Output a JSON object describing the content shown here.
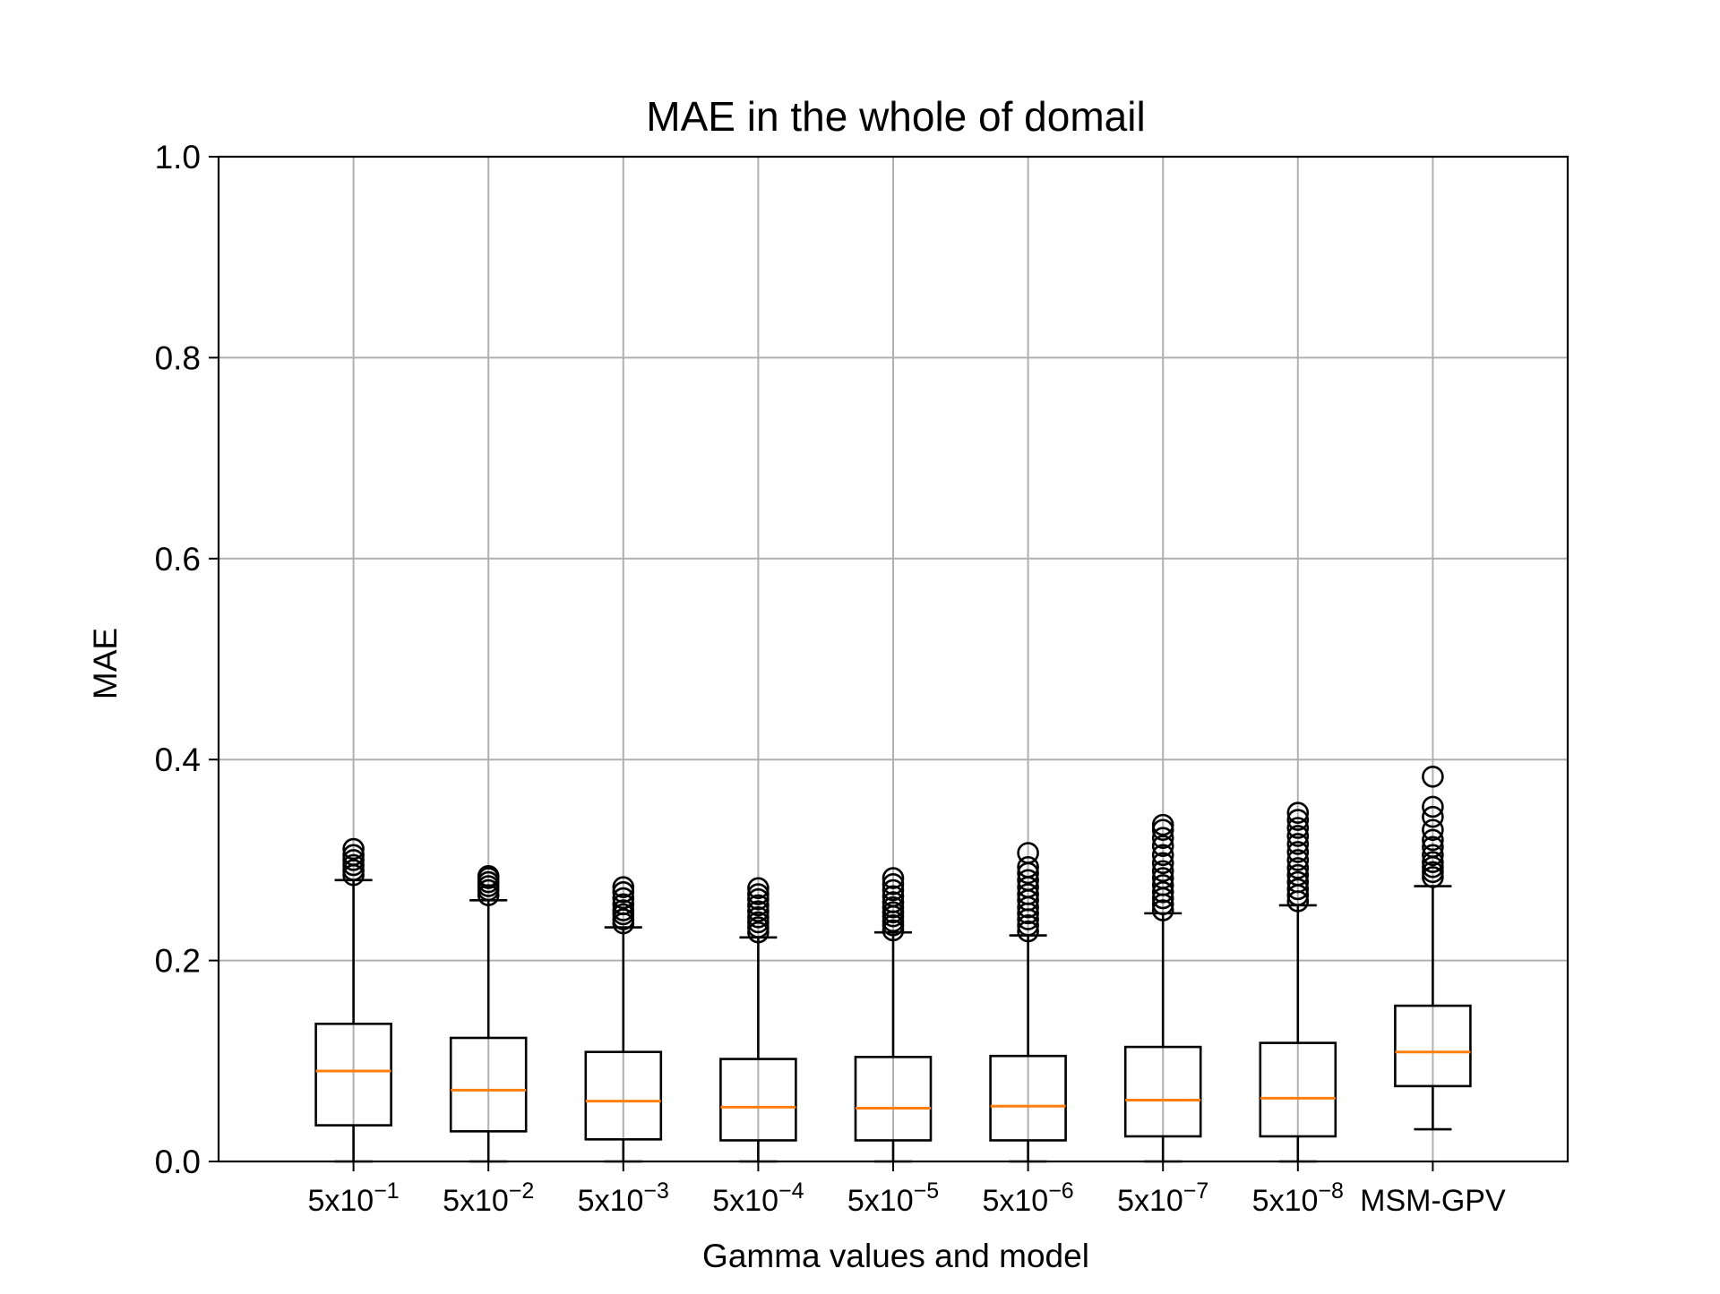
{
  "chart_data": {
    "type": "box",
    "title": "MAE in the whole of domail",
    "xlabel": "Gamma values and model",
    "ylabel": "MAE",
    "ylim": [
      0.0,
      1.0
    ],
    "yticks": [
      "0.0",
      "0.2",
      "0.4",
      "0.6",
      "0.8",
      "1.0"
    ],
    "grid": true,
    "colors": {
      "box": "#000000",
      "median": "#ff7f0e",
      "grid": "#b0b0b0"
    },
    "categories": [
      {
        "base": "5x10",
        "exp": "−1"
      },
      {
        "base": "5x10",
        "exp": "−2"
      },
      {
        "base": "5x10",
        "exp": "−3"
      },
      {
        "base": "5x10",
        "exp": "−4"
      },
      {
        "base": "5x10",
        "exp": "−5"
      },
      {
        "base": "5x10",
        "exp": "−6"
      },
      {
        "base": "5x10",
        "exp": "−7"
      },
      {
        "base": "5x10",
        "exp": "−8"
      },
      {
        "base": "MSM-GPV",
        "exp": ""
      }
    ],
    "boxes": [
      {
        "whisker_low": 0.0,
        "q1": 0.036,
        "median": 0.09,
        "q3": 0.137,
        "whisker_high": 0.28,
        "outliers": [
          0.285,
          0.29,
          0.295,
          0.3,
          0.305,
          0.311
        ]
      },
      {
        "whisker_low": 0.0,
        "q1": 0.03,
        "median": 0.071,
        "q3": 0.123,
        "whisker_high": 0.26,
        "outliers": [
          0.265,
          0.27,
          0.274,
          0.278,
          0.282,
          0.284
        ]
      },
      {
        "whisker_low": 0.0,
        "q1": 0.022,
        "median": 0.06,
        "q3": 0.109,
        "whisker_high": 0.233,
        "outliers": [
          0.237,
          0.241,
          0.246,
          0.25,
          0.256,
          0.262,
          0.268,
          0.273
        ]
      },
      {
        "whisker_low": 0.0,
        "q1": 0.021,
        "median": 0.054,
        "q3": 0.102,
        "whisker_high": 0.223,
        "outliers": [
          0.228,
          0.233,
          0.238,
          0.243,
          0.249,
          0.255,
          0.261,
          0.266,
          0.272
        ]
      },
      {
        "whisker_low": 0.0,
        "q1": 0.021,
        "median": 0.053,
        "q3": 0.104,
        "whisker_high": 0.228,
        "outliers": [
          0.23,
          0.235,
          0.239,
          0.244,
          0.248,
          0.253,
          0.258,
          0.264,
          0.27,
          0.276,
          0.282
        ]
      },
      {
        "whisker_low": 0.0,
        "q1": 0.021,
        "median": 0.055,
        "q3": 0.105,
        "whisker_high": 0.225,
        "outliers": [
          0.229,
          0.235,
          0.241,
          0.247,
          0.253,
          0.26,
          0.266,
          0.273,
          0.28,
          0.287,
          0.293,
          0.307
        ]
      },
      {
        "whisker_low": 0.0,
        "q1": 0.025,
        "median": 0.061,
        "q3": 0.114,
        "whisker_high": 0.247,
        "outliers": [
          0.25,
          0.256,
          0.262,
          0.268,
          0.275,
          0.282,
          0.289,
          0.297,
          0.305,
          0.314,
          0.322,
          0.33,
          0.335
        ]
      },
      {
        "whisker_low": 0.0,
        "q1": 0.025,
        "median": 0.063,
        "q3": 0.118,
        "whisker_high": 0.255,
        "outliers": [
          0.259,
          0.265,
          0.271,
          0.278,
          0.285,
          0.292,
          0.3,
          0.308,
          0.316,
          0.324,
          0.332,
          0.34,
          0.347
        ]
      },
      {
        "whisker_low": 0.032,
        "q1": 0.075,
        "median": 0.109,
        "q3": 0.155,
        "whisker_high": 0.274,
        "outliers": [
          0.283,
          0.288,
          0.293,
          0.298,
          0.305,
          0.313,
          0.32,
          0.33,
          0.343,
          0.353,
          0.383
        ]
      }
    ]
  }
}
